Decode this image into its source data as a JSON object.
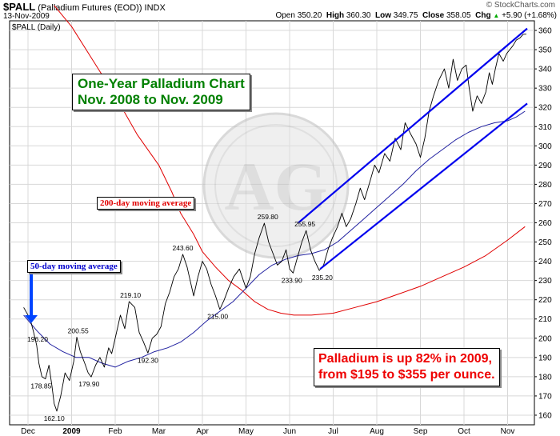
{
  "header": {
    "symbol": "$PALL",
    "name": "(Palladium Futures (EOD))",
    "exchange": "INDX",
    "date": "13-Nov-2009",
    "open_label": "Open",
    "open": "350.20",
    "high_label": "High",
    "high": "360.30",
    "low_label": "Low",
    "low": "349.75",
    "close_label": "Close",
    "close": "358.05",
    "chg_label": "Chg",
    "chg": "+5.90 (+1.68%)",
    "chg_arrow": "▲",
    "watermark": "© StockCharts.com"
  },
  "chart_data": {
    "type": "line",
    "legend": "$PALL (Daily)",
    "title": "One-Year Palladium Chart",
    "subtitle": "Nov. 2008 to Nov. 2009",
    "callout_lines": [
      "Palladium is up 82% in 2009,",
      "from $195 to $355 per ounce."
    ],
    "label_200": "200-day moving average",
    "label_50": "50-day moving average",
    "x_ticks": [
      "Dec",
      "2009",
      "Feb",
      "Mar",
      "Apr",
      "May",
      "Jun",
      "Jul",
      "Aug",
      "Sep",
      "Oct",
      "Nov"
    ],
    "ylim": [
      155,
      365
    ],
    "y_ticks": [
      160,
      170,
      180,
      190,
      200,
      210,
      220,
      230,
      240,
      250,
      260,
      270,
      280,
      290,
      300,
      310,
      320,
      330,
      340,
      350,
      360
    ],
    "grid": true,
    "colors": {
      "price": "#000000",
      "ma200": "#e00000",
      "ma50": "#2020a0",
      "channel": "#0000ee",
      "title_green": "#008000",
      "callout_red": "#ee0000",
      "axis_label": "#0000cc"
    },
    "price": {
      "x": [
        -0.1,
        0.05,
        0.12,
        0.2,
        0.25,
        0.32,
        0.4,
        0.48,
        0.55,
        0.6,
        0.66,
        0.75,
        0.85,
        0.95,
        1.05,
        1.12,
        1.2,
        1.3,
        1.38,
        1.45,
        1.55,
        1.65,
        1.75,
        1.85,
        1.92,
        2.02,
        2.12,
        2.22,
        2.32,
        2.45,
        2.55,
        2.65,
        2.75,
        2.85,
        2.95,
        3.05,
        3.15,
        3.25,
        3.35,
        3.45,
        3.55,
        3.65,
        3.72,
        3.8,
        3.9,
        4.0,
        4.1,
        4.2,
        4.3,
        4.4,
        4.5,
        4.6,
        4.72,
        4.85,
        5.0,
        5.1,
        5.2,
        5.3,
        5.42,
        5.52,
        5.62,
        5.72,
        5.82,
        5.92,
        6.0,
        6.08,
        6.18,
        6.28,
        6.38,
        6.48,
        6.58,
        6.68,
        6.78,
        6.88,
        6.98,
        7.1,
        7.2,
        7.3,
        7.4,
        7.52,
        7.62,
        7.72,
        7.85,
        7.95,
        8.05,
        8.18,
        8.3,
        8.42,
        8.55,
        8.65,
        8.78,
        8.9,
        9.0,
        9.1,
        9.2,
        9.3,
        9.42,
        9.55,
        9.65,
        9.75,
        9.85,
        9.95,
        10.05,
        10.12,
        10.2,
        10.3,
        10.4,
        10.5,
        10.58,
        10.65,
        10.72,
        10.8,
        10.9,
        10.98,
        11.05,
        11.12,
        11.2,
        11.28,
        11.36,
        11.43
      ],
      "y": [
        216,
        210,
        204,
        196.2,
        187,
        180,
        178.85,
        186,
        175,
        166,
        162.1,
        170,
        182,
        178,
        188,
        200.55,
        193,
        187,
        182,
        179.9,
        186,
        190,
        185,
        195,
        192,
        202,
        212,
        205,
        219.1,
        216,
        203,
        198,
        192.3,
        200,
        202,
        206,
        218,
        224,
        232,
        236,
        243.6,
        237,
        230,
        222,
        232,
        240,
        236,
        228,
        222,
        215,
        220,
        226,
        232,
        236,
        226,
        232,
        244,
        252,
        259.8,
        250,
        244,
        238,
        240,
        246,
        236,
        233.9,
        242,
        250,
        255.95,
        246,
        240,
        235.2,
        238,
        246,
        252,
        258,
        265,
        258,
        262,
        270,
        278,
        272,
        282,
        290,
        286,
        296,
        292,
        304,
        298,
        312,
        306,
        301,
        294,
        304,
        318,
        326,
        334,
        340,
        330,
        345,
        334,
        340,
        342,
        330,
        318,
        326,
        322,
        328,
        338,
        332,
        340,
        348,
        344,
        348,
        350,
        352,
        355,
        356,
        358,
        358.05
      ]
    },
    "ma200": {
      "x": [
        0.6,
        1.0,
        1.5,
        2.0,
        2.5,
        3.0,
        3.3,
        3.5,
        3.8,
        4.0,
        4.3,
        4.6,
        4.9,
        5.2,
        5.5,
        5.8,
        6.1,
        6.5,
        7.0,
        7.5,
        8.0,
        8.5,
        9.0,
        9.5,
        10.0,
        10.5,
        11.0,
        11.4
      ],
      "y": [
        373,
        362,
        344,
        326,
        306,
        290,
        276,
        265,
        254,
        245,
        237,
        230,
        225,
        219,
        215,
        213,
        212,
        212,
        213,
        216,
        219,
        223,
        227,
        232,
        237,
        243,
        251,
        258
      ]
    },
    "ma50": {
      "x": [
        -0.1,
        0.2,
        0.5,
        0.8,
        1.1,
        1.4,
        1.7,
        2.0,
        2.3,
        2.6,
        2.9,
        3.2,
        3.5,
        3.8,
        4.1,
        4.4,
        4.7,
        5.0,
        5.3,
        5.6,
        5.9,
        6.2,
        6.5,
        6.8,
        7.1,
        7.4,
        7.7,
        8.0,
        8.3,
        8.6,
        8.9,
        9.2,
        9.5,
        9.8,
        10.1,
        10.4,
        10.7,
        11.0,
        11.2,
        11.4
      ],
      "y": [
        212,
        204,
        197,
        193,
        190,
        190,
        187,
        185,
        188,
        190,
        193,
        195,
        198,
        203,
        209,
        214,
        219,
        226,
        233,
        238,
        241,
        243,
        244,
        246,
        250,
        256,
        262,
        268,
        274,
        280,
        287,
        293,
        298,
        303,
        307,
        310,
        312,
        313,
        315,
        318
      ]
    },
    "channel_upper": {
      "x": [
        6.2,
        11.45
      ],
      "y": [
        260,
        361
      ]
    },
    "channel_lower": {
      "x": [
        6.7,
        11.45
      ],
      "y": [
        236,
        322
      ]
    },
    "annotations": [
      {
        "x": 0.22,
        "y": 196.2,
        "text": "196.20",
        "pos": "above"
      },
      {
        "x": 0.3,
        "y": 178.85,
        "text": "178.85",
        "pos": "below"
      },
      {
        "x": 0.6,
        "y": 162.1,
        "text": "162.10",
        "pos": "below"
      },
      {
        "x": 1.15,
        "y": 200.55,
        "text": "200.55",
        "pos": "above"
      },
      {
        "x": 1.4,
        "y": 179.9,
        "text": "179.90",
        "pos": "below"
      },
      {
        "x": 2.35,
        "y": 219.1,
        "text": "219.10",
        "pos": "above"
      },
      {
        "x": 2.75,
        "y": 192.3,
        "text": "192.30",
        "pos": "below"
      },
      {
        "x": 3.55,
        "y": 243.6,
        "text": "243.60",
        "pos": "above"
      },
      {
        "x": 4.35,
        "y": 215.0,
        "text": "215.00",
        "pos": "below"
      },
      {
        "x": 5.5,
        "y": 259.8,
        "text": "259.80",
        "pos": "above"
      },
      {
        "x": 6.05,
        "y": 233.9,
        "text": "233.90",
        "pos": "below"
      },
      {
        "x": 6.35,
        "y": 255.95,
        "text": "255.95",
        "pos": "above"
      },
      {
        "x": 6.75,
        "y": 235.2,
        "text": "235.20",
        "pos": "below"
      }
    ]
  }
}
